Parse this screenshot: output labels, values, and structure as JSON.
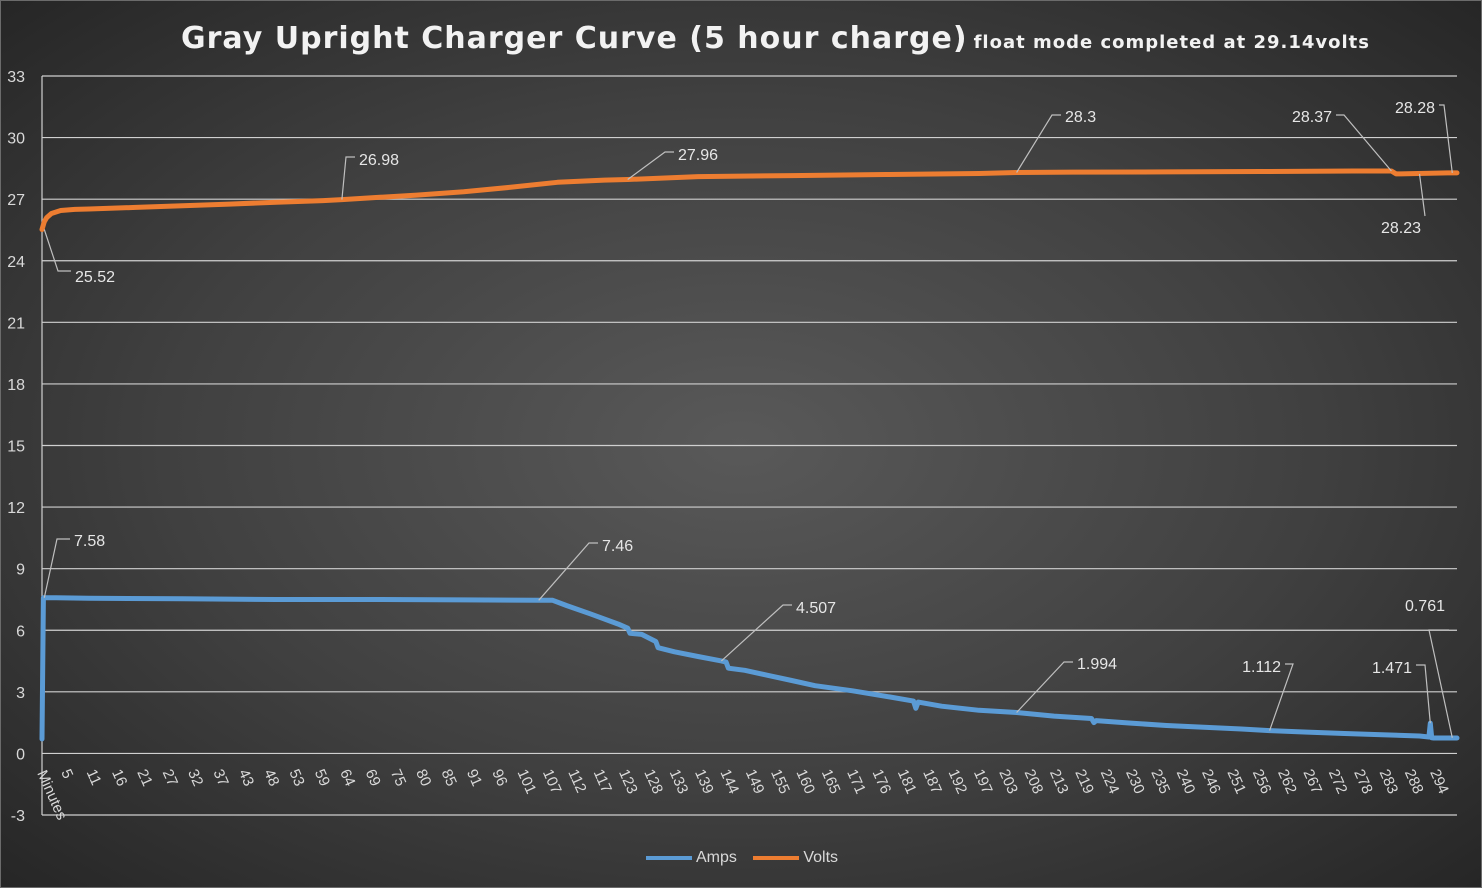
{
  "chart_data": {
    "type": "line",
    "title": "Gray Upright Charger Curve (5 hour charge)",
    "subtitle": "float mode completed at 29.14volts",
    "xlabel": "Minutes",
    "ylabel": "",
    "ylim": [
      -3,
      33
    ],
    "xlim": [
      0,
      302
    ],
    "grid": true,
    "legend": "bottom",
    "y_ticks": [
      "-3",
      "0",
      "3",
      "6",
      "9",
      "12",
      "15",
      "18",
      "21",
      "24",
      "27",
      "30",
      "33"
    ],
    "x_ticks": [
      "5",
      "11",
      "16",
      "21",
      "27",
      "32",
      "37",
      "43",
      "48",
      "53",
      "59",
      "64",
      "69",
      "75",
      "80",
      "85",
      "91",
      "96",
      "101",
      "107",
      "112",
      "117",
      "123",
      "128",
      "133",
      "139",
      "144",
      "149",
      "155",
      "160",
      "165",
      "171",
      "176",
      "181",
      "187",
      "192",
      "197",
      "203",
      "208",
      "213",
      "219",
      "224",
      "230",
      "235",
      "240",
      "246",
      "251",
      "256",
      "262",
      "267",
      "272",
      "278",
      "283",
      "288",
      "294"
    ],
    "series": [
      {
        "name": "Amps",
        "color": "#5b9bd5",
        "x": [
          0,
          0.3,
          1,
          3,
          10,
          30,
          50,
          70,
          90,
          106,
          109,
          112,
          117,
          123,
          125,
          125.5,
          128,
          131,
          131.5,
          135,
          140,
          145,
          146,
          146.5,
          150,
          155,
          160,
          165,
          173,
          181,
          186,
          186.5,
          187,
          192,
          200,
          208,
          216,
          224,
          224.5,
          225,
          232,
          240,
          248,
          256,
          262,
          270,
          278,
          286,
          294,
          296,
          296.3,
          296.6,
          297,
          302
        ],
        "values": [
          0.7,
          7.58,
          7.58,
          7.58,
          7.56,
          7.53,
          7.5,
          7.5,
          7.48,
          7.46,
          7.46,
          7.2,
          6.8,
          6.3,
          6.1,
          5.85,
          5.8,
          5.45,
          5.15,
          4.95,
          4.72,
          4.507,
          4.45,
          4.15,
          4.05,
          3.8,
          3.55,
          3.3,
          3.05,
          2.75,
          2.55,
          2.2,
          2.5,
          2.3,
          2.1,
          1.994,
          1.82,
          1.7,
          1.5,
          1.6,
          1.48,
          1.36,
          1.27,
          1.19,
          1.112,
          1.04,
          0.97,
          0.91,
          0.85,
          0.8,
          1.471,
          0.761,
          0.75,
          0.75
        ]
      },
      {
        "name": "Volts",
        "color": "#ed7d31",
        "x": [
          0,
          0.5,
          1,
          2,
          4,
          7,
          10,
          20,
          30,
          40,
          50,
          60,
          64,
          70,
          80,
          90,
          100,
          110,
          120,
          125,
          140,
          160,
          180,
          200,
          208,
          220,
          240,
          260,
          280,
          288,
          289,
          290,
          300,
          302
        ],
        "values": [
          25.52,
          25.9,
          26.1,
          26.3,
          26.45,
          26.5,
          26.52,
          26.6,
          26.68,
          26.76,
          26.85,
          26.93,
          26.98,
          27.06,
          27.2,
          27.36,
          27.58,
          27.82,
          27.93,
          27.96,
          28.1,
          28.15,
          28.2,
          28.25,
          28.3,
          28.32,
          28.33,
          28.35,
          28.37,
          28.37,
          28.23,
          28.23,
          28.28,
          28.28
        ]
      }
    ],
    "annotations": [
      {
        "series": "Volts",
        "x": 0.5,
        "y": 25.52,
        "label": "25.52"
      },
      {
        "series": "Volts",
        "x": 64,
        "y": 26.98,
        "label": "26.98"
      },
      {
        "series": "Volts",
        "x": 125,
        "y": 27.96,
        "label": "27.96"
      },
      {
        "series": "Volts",
        "x": 208,
        "y": 28.3,
        "label": "28.3"
      },
      {
        "series": "Volts",
        "x": 288,
        "y": 28.37,
        "label": "28.37"
      },
      {
        "series": "Volts",
        "x": 294,
        "y": 28.23,
        "label": "28.23"
      },
      {
        "series": "Volts",
        "x": 301,
        "y": 28.28,
        "label": "28.28"
      },
      {
        "series": "Amps",
        "x": 0.5,
        "y": 7.58,
        "label": "7.58"
      },
      {
        "series": "Amps",
        "x": 106,
        "y": 7.46,
        "label": "7.46"
      },
      {
        "series": "Amps",
        "x": 145,
        "y": 4.507,
        "label": "4.507"
      },
      {
        "series": "Amps",
        "x": 208,
        "y": 1.994,
        "label": "1.994"
      },
      {
        "series": "Amps",
        "x": 262,
        "y": 1.112,
        "label": "1.112"
      },
      {
        "series": "Amps",
        "x": 296.3,
        "y": 1.471,
        "label": "1.471"
      },
      {
        "series": "Amps",
        "x": 301,
        "y": 0.761,
        "label": "0.761"
      }
    ]
  }
}
